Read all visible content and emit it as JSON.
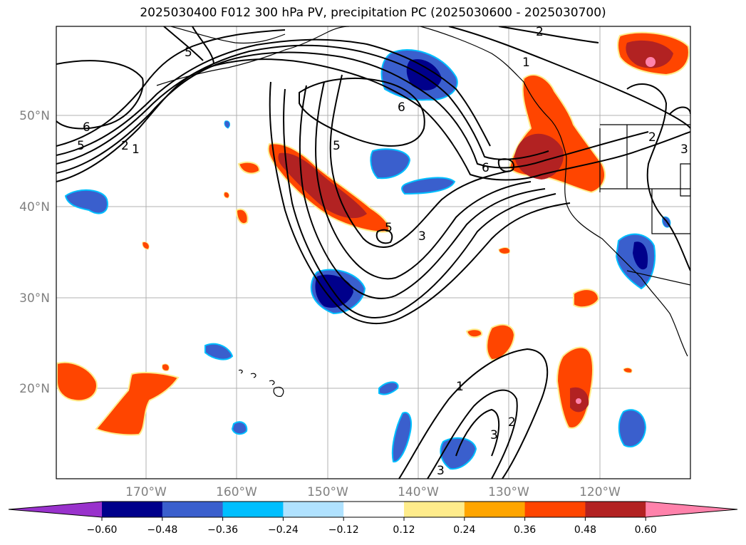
{
  "title": "2025030400 F012 300 hPa PV, precipitation PC (2025030600 - 2025030700)",
  "lat_labels": [
    "50°N",
    "40°N",
    "30°N",
    "20°N"
  ],
  "lon_labels": [
    "170°W",
    "160°W",
    "150°W",
    "140°W",
    "130°W",
    "120°W"
  ],
  "colorbar": {
    "tick_labels": [
      "−0.60",
      "−0.48",
      "−0.36",
      "−0.24",
      "−0.12",
      "0.12",
      "0.24",
      "0.36",
      "0.48",
      "0.60"
    ],
    "colors": [
      "#9932cc",
      "#00008b",
      "#3a5fcd",
      "#00bfff",
      "#b0e2ff",
      "#ffffff",
      "#ffec8b",
      "#ffa500",
      "#ff4500",
      "#b22222",
      "#ff82ab"
    ]
  },
  "contour_labels": [
    "5",
    "6",
    "5",
    "2",
    "1",
    "2",
    "1",
    "2",
    "3",
    "6",
    "5",
    "6",
    "3",
    "5",
    "1",
    "2",
    "3",
    "3"
  ],
  "colors": {
    "neg_dark": "#00008b",
    "neg_mid": "#3a5fcd",
    "neg_light": "#00bfff",
    "pos_yellow": "#ffec8b",
    "pos_orange": "#ffa500",
    "pos_red": "#ff4500",
    "pos_darkred": "#b22222",
    "pos_pink": "#ff82ab"
  }
}
